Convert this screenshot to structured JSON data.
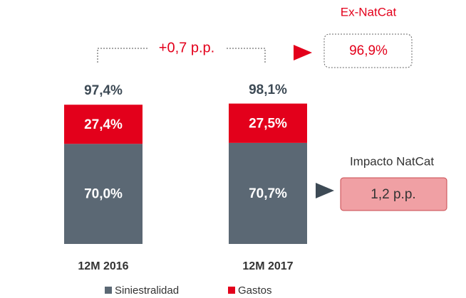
{
  "chart_data": {
    "type": "stacked_bar",
    "categories": [
      "12M 2016",
      "12M 2017"
    ],
    "series": [
      {
        "name": "Siniestralidad",
        "color": "#5b6874",
        "values": [
          70.0,
          70.7
        ],
        "value_labels": [
          "70,0%",
          "70,7%"
        ]
      },
      {
        "name": "Gastos",
        "color": "#e3001b",
        "values": [
          27.4,
          27.5
        ],
        "value_labels": [
          "27,4%",
          "27,5%"
        ]
      }
    ],
    "totals": [
      97.4,
      98.1
    ],
    "total_labels": [
      "97,4%",
      "98,1%"
    ],
    "ylim": [
      0,
      100
    ],
    "annotations": {
      "difference": "+0,7 p.p.",
      "ex_natcat_label": "Ex-NatCat",
      "ex_natcat_value": "96,9%",
      "natcat_label": "Impacto NatCat",
      "natcat_value": "1,2 p.p."
    }
  }
}
